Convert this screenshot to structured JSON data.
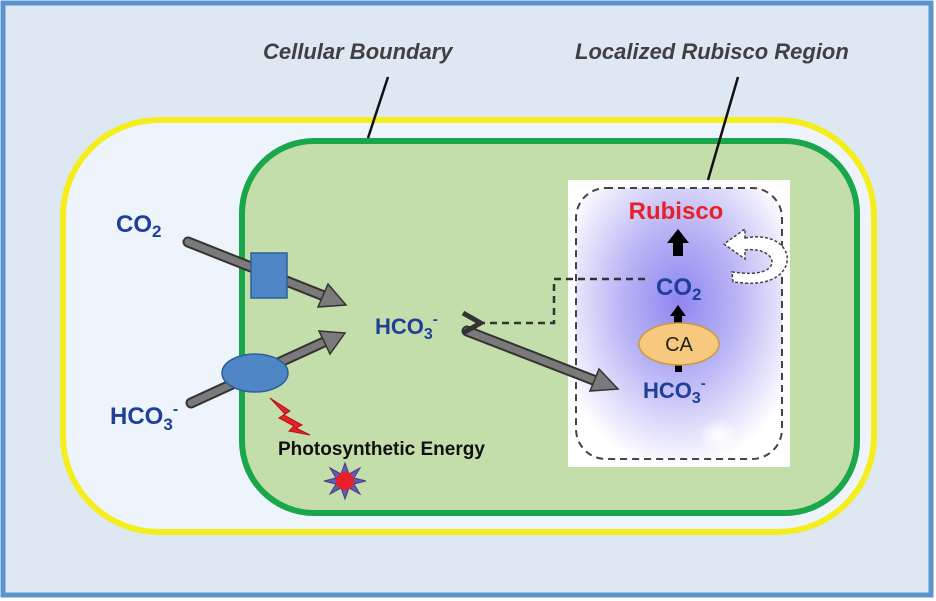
{
  "labels": {
    "cellular_boundary": "Cellular Boundary",
    "localized_region": "Localized Rubisco Region",
    "photosynthetic_energy": "Photosynthetic Energy",
    "rubisco": "Rubisco",
    "ca": "CA"
  },
  "species": {
    "co2_outside": {
      "base": "CO",
      "sub": "2",
      "sup": ""
    },
    "hco3_outside": {
      "base": "HCO",
      "sub": "3",
      "sup": "-"
    },
    "hco3_cytosol": {
      "base": "HCO",
      "sub": "3",
      "sup": "-"
    },
    "co2_region": {
      "base": "CO",
      "sub": "2",
      "sup": ""
    },
    "hco3_region": {
      "base": "HCO",
      "sub": "3",
      "sup": "-"
    }
  },
  "colors": {
    "frame_border": "#5b95cf",
    "background": "#dde8f3",
    "outer_membrane": "#f5ee1e",
    "inner_membrane": "#1aa64a",
    "cytosol_fill": "#c3deaa",
    "transporter": "#4f86c6",
    "arrow_fill": "#7a7a7a",
    "chem_text": "#1f3f99",
    "rubisco_text": "#e8202a",
    "ca_fill": "#f7c97e",
    "energy_star": "#6a5aa8",
    "energy_core": "#e8202a"
  },
  "icons": {
    "co2_transporter": "square-transporter-icon",
    "hco3_transporter": "oval-transporter-icon",
    "energy_bolt": "lightning-bolt-icon",
    "energy_star": "starburst-icon",
    "leak_recapture": "curved-return-arrow-icon"
  }
}
